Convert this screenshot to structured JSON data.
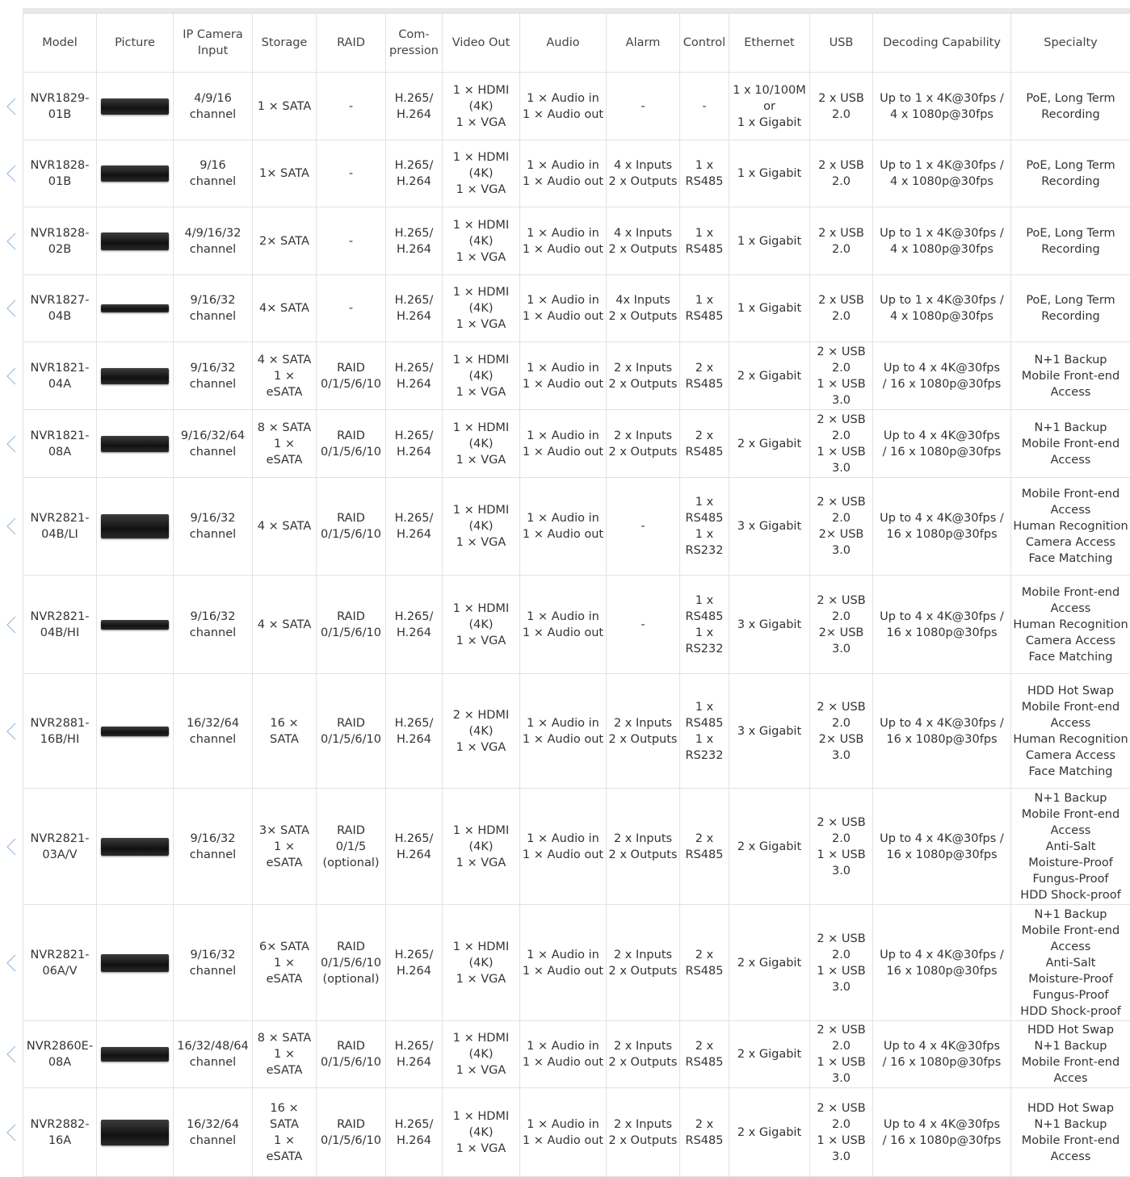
{
  "table": {
    "header": [
      "Model",
      "Picture",
      "IP Camera\nInput",
      "Storage",
      "RAID",
      "Com-\npression",
      "Video Out",
      "Audio",
      "Alarm",
      "Control",
      "Ethernet",
      "USB",
      "Decoding Capability",
      "Specialty"
    ],
    "rows": [
      [
        "NVR1829-\n01B",
        "4/9/16\nchannel",
        "1 × SATA",
        "-",
        "H.265/\nH.264",
        "1 × HDMI\n(4K)\n1 × VGA",
        "1 × Audio in\n1 × Audio out",
        "-",
        "-",
        "1 x 10/100M\nor\n1 x Gigabit",
        "2 x USB\n2.0",
        "Up to 1 x 4K@30fps /\n4 x 1080p@30fps",
        "PoE, Long Term\nRecording"
      ],
      [
        "NVR1828-\n01B",
        "9/16\nchannel",
        "1× SATA",
        "-",
        "H.265/\nH.264",
        "1 × HDMI\n(4K)\n1 × VGA",
        "1 × Audio in\n1 × Audio out",
        "4 x Inputs\n2 x Outputs",
        "1 x\nRS485",
        "1 x Gigabit",
        "2 x USB\n2.0",
        "Up to 1 x 4K@30fps /\n4 x 1080p@30fps",
        "PoE, Long Term\nRecording"
      ],
      [
        "NVR1828-\n02B",
        "4/9/16/32\nchannel",
        "2× SATA",
        "-",
        "H.265/\nH.264",
        "1 × HDMI\n(4K)\n1 × VGA",
        "1 × Audio in\n1 × Audio out",
        "4 x Inputs\n2 x Outputs",
        "1 x\nRS485",
        "1 x Gigabit",
        "2 x USB\n2.0",
        "Up to 1 x 4K@30fps /\n4 x 1080p@30fps",
        "PoE, Long Term\nRecording"
      ],
      [
        "NVR1827-\n04B",
        "9/16/32\nchannel",
        "4× SATA",
        "-",
        "H.265/\nH.264",
        "1 × HDMI\n(4K)\n1 × VGA",
        "1 × Audio in\n1 × Audio out",
        "4x Inputs\n2 x Outputs",
        "1 x\nRS485",
        "1 x Gigabit",
        "2 x USB\n2.0",
        "Up to 1 x 4K@30fps /\n4 x 1080p@30fps",
        "PoE, Long Term\nRecording"
      ],
      [
        "NVR1821-\n04A",
        "9/16/32\nchannel",
        "4 × SATA\n1 ×\neSATA",
        "RAID\n0/1/5/6/10",
        "H.265/\nH.264",
        "1 × HDMI\n(4K)\n1 × VGA",
        "1 × Audio in\n1 × Audio out",
        "2 x Inputs\n2 x Outputs",
        "2 x\nRS485",
        "2 x Gigabit",
        "2 × USB\n2.0\n1 × USB\n3.0",
        "Up to 4 x 4K@30fps\n/ 16 x 1080p@30fps",
        "N+1 Backup\nMobile Front-end\nAccess"
      ],
      [
        "NVR1821-\n08A",
        "9/16/32/64\nchannel",
        "8 × SATA\n1 ×\neSATA",
        "RAID\n0/1/5/6/10",
        "H.265/\nH.264",
        "1 × HDMI\n(4K)\n1 × VGA",
        "1 × Audio in\n1 × Audio out",
        "2 x Inputs\n2 x Outputs",
        "2 x\nRS485",
        "2 x Gigabit",
        "2 × USB\n2.0\n1 × USB\n3.0",
        "Up to 4 x 4K@30fps\n/ 16 x 1080p@30fps",
        "N+1 Backup\nMobile Front-end\nAccess"
      ],
      [
        "NVR2821-\n04B/LI",
        "9/16/32\nchannel",
        "4 × SATA",
        "RAID\n0/1/5/6/10",
        "H.265/\nH.264",
        "1 × HDMI\n(4K)\n1 × VGA",
        "1 × Audio in\n1 × Audio out",
        "-",
        "1 x\nRS485\n1 x\nRS232",
        "3 x Gigabit",
        "2 × USB\n2.0\n2× USB\n3.0",
        "Up to 4 x 4K@30fps /\n16 x 1080p@30fps",
        "Mobile Front-end\nAccess\nHuman Recognition\nCamera Access\nFace Matching"
      ],
      [
        "NVR2821-\n04B/HI",
        "9/16/32\nchannel",
        "4 × SATA",
        "RAID\n0/1/5/6/10",
        "H.265/\nH.264",
        "1 × HDMI\n(4K)\n1 × VGA",
        "1 × Audio in\n1 × Audio out",
        "-",
        "1 x\nRS485\n1 x\nRS232",
        "3 x Gigabit",
        "2 × USB\n2.0\n2× USB\n3.0",
        "Up to 4 x 4K@30fps /\n16 x 1080p@30fps",
        "Mobile Front-end\nAccess\nHuman Recognition\nCamera Access\nFace Matching"
      ],
      [
        "NVR2881-\n16B/HI",
        "16/32/64\nchannel",
        "16 ×\nSATA",
        "RAID\n0/1/5/6/10",
        "H.265/\nH.264",
        "2 × HDMI\n(4K)\n1 × VGA",
        "1 × Audio in\n1 × Audio out",
        "2 x Inputs\n2 x Outputs",
        "1 x\nRS485\n1 x\nRS232",
        "3 x Gigabit",
        "2 × USB\n2.0\n2× USB\n3.0",
        "Up to 4 x 4K@30fps /\n16 x 1080p@30fps",
        "HDD Hot Swap\nMobile Front-end\nAccess\nHuman Recognition\nCamera Access\nFace Matching"
      ],
      [
        "NVR2821-\n03A/V",
        "9/16/32\nchannel",
        "3× SATA\n1 ×\neSATA",
        "RAID\n0/1/5\n(optional)",
        "H.265/\nH.264",
        "1 × HDMI\n(4K)\n1 × VGA",
        "1 × Audio in\n1 × Audio out",
        "2 x Inputs\n2 x Outputs",
        "2 x\nRS485",
        "2 x Gigabit",
        "2 × USB\n2.0\n1 × USB\n3.0",
        "Up to 4 x 4K@30fps /\n16 x 1080p@30fps",
        "N+1 Backup\nMobile Front-end\nAccess\nAnti-Salt\nMoisture-Proof\nFungus-Proof\nHDD Shock-proof"
      ],
      [
        "NVR2821-\n06A/V",
        "9/16/32\nchannel",
        "6× SATA\n1 ×\neSATA",
        "RAID\n0/1/5/6/10\n(optional)",
        "H.265/\nH.264",
        "1 × HDMI\n(4K)\n1 × VGA",
        "1 × Audio in\n1 × Audio out",
        "2 x Inputs\n2 x Outputs",
        "2 x\nRS485",
        "2 x Gigabit",
        "2 × USB\n2.0\n1 × USB\n3.0",
        "Up to 4 x 4K@30fps /\n16 x 1080p@30fps",
        "N+1 Backup\nMobile Front-end\nAccess\nAnti-Salt\nMoisture-Proof\nFungus-Proof\nHDD Shock-proof"
      ],
      [
        "NVR2860E-\n08A",
        "16/32/48/64\nchannel",
        "8 × SATA\n1 ×\neSATA",
        "RAID\n0/1/5/6/10",
        "H.265/\nH.264",
        "1 × HDMI\n(4K)\n1 × VGA",
        "1 × Audio in\n1 × Audio out",
        "2 x Inputs\n2 x Outputs",
        "2 x\nRS485",
        "2 x Gigabit",
        "2 × USB\n2.0\n1 × USB\n3.0",
        "Up to 4 x 4K@30fps\n/ 16 x 1080p@30fps",
        "HDD Hot Swap\nN+1 Backup\nMobile Front-end\nAcces"
      ],
      [
        "NVR2882-\n16A",
        "16/32/64\nchannel",
        "16 ×\nSATA\n1 ×\neSATA",
        "RAID\n0/1/5/6/10",
        "H.265/\nH.264",
        "1 × HDMI\n(4K)\n1 × VGA",
        "1 × Audio in\n1 × Audio out",
        "2 x Inputs\n2 x Outputs",
        "2 x\nRS485",
        "2 x Gigabit",
        "2 × USB\n2.0\n1 × USB\n3.0",
        "Up to 4 x 4K@30fps\n/ 16 x 1080p@30fps",
        "HDD Hot Swap\nN+1 Backup\nMobile Front-end\nAccess"
      ]
    ]
  }
}
